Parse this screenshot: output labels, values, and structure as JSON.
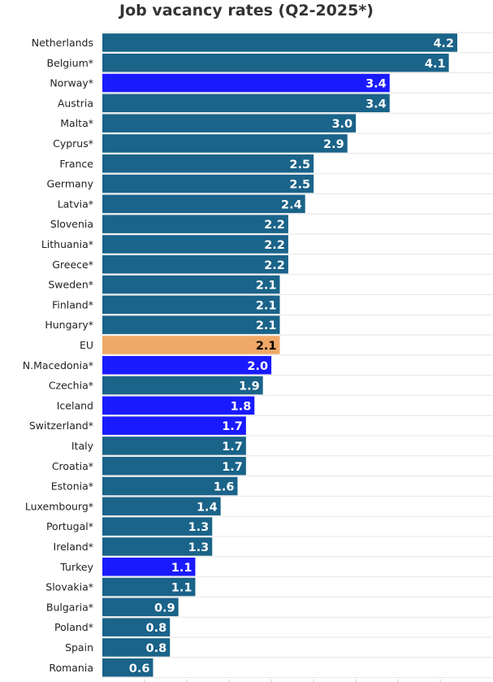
{
  "chart_data": {
    "type": "bar",
    "orientation": "horizontal",
    "title": "Job vacancy rates (Q2-2025*)",
    "xlabel": "",
    "ylabel": "",
    "xlim": [
      0,
      4.4
    ],
    "grid": true,
    "legend": "none",
    "colors": {
      "default": "#1a6389",
      "highlight_non_eu": "#1a1aff",
      "eu": "#f0a868",
      "label_default": "#ffffff",
      "label_eu": "#000000"
    },
    "categories": [
      "Netherlands",
      "Belgium*",
      "Norway*",
      "Austria",
      "Malta*",
      "Cyprus*",
      "France",
      "Germany",
      "Latvia*",
      "Slovenia",
      "Lithuania*",
      "Greece*",
      "Sweden*",
      "Finland*",
      "Hungary*",
      "EU",
      "N.Macedonia*",
      "Czechia*",
      "Iceland",
      "Switzerland*",
      "Italy",
      "Croatia*",
      "Estonia*",
      "Luxembourg*",
      "Portugal*",
      "Ireland*",
      "Turkey",
      "Slovakia*",
      "Bulgaria*",
      "Poland*",
      "Spain",
      "Romania"
    ],
    "values": [
      4.2,
      4.1,
      3.4,
      3.4,
      3.0,
      2.9,
      2.5,
      2.5,
      2.4,
      2.2,
      2.2,
      2.2,
      2.1,
      2.1,
      2.1,
      2.1,
      2.0,
      1.9,
      1.8,
      1.7,
      1.7,
      1.7,
      1.6,
      1.4,
      1.3,
      1.3,
      1.1,
      1.1,
      0.9,
      0.8,
      0.8,
      0.6
    ],
    "value_labels": [
      "4.2",
      "4.1",
      "3.4",
      "3.4",
      "3.0",
      "2.9",
      "2.5",
      "2.5",
      "2.4",
      "2.2",
      "2.2",
      "2.2",
      "2.1",
      "2.1",
      "2.1",
      "2.1",
      "2.0",
      "1.9",
      "1.8",
      "1.7",
      "1.7",
      "1.7",
      "1.6",
      "1.4",
      "1.3",
      "1.3",
      "1.1",
      "1.1",
      "0.9",
      "0.8",
      "0.8",
      "0.6"
    ],
    "bar_groups": [
      "default",
      "default",
      "highlight_non_eu",
      "default",
      "default",
      "default",
      "default",
      "default",
      "default",
      "default",
      "default",
      "default",
      "default",
      "default",
      "default",
      "eu",
      "highlight_non_eu",
      "default",
      "highlight_non_eu",
      "highlight_non_eu",
      "default",
      "default",
      "default",
      "default",
      "default",
      "default",
      "highlight_non_eu",
      "default",
      "default",
      "default",
      "default",
      "default"
    ]
  }
}
